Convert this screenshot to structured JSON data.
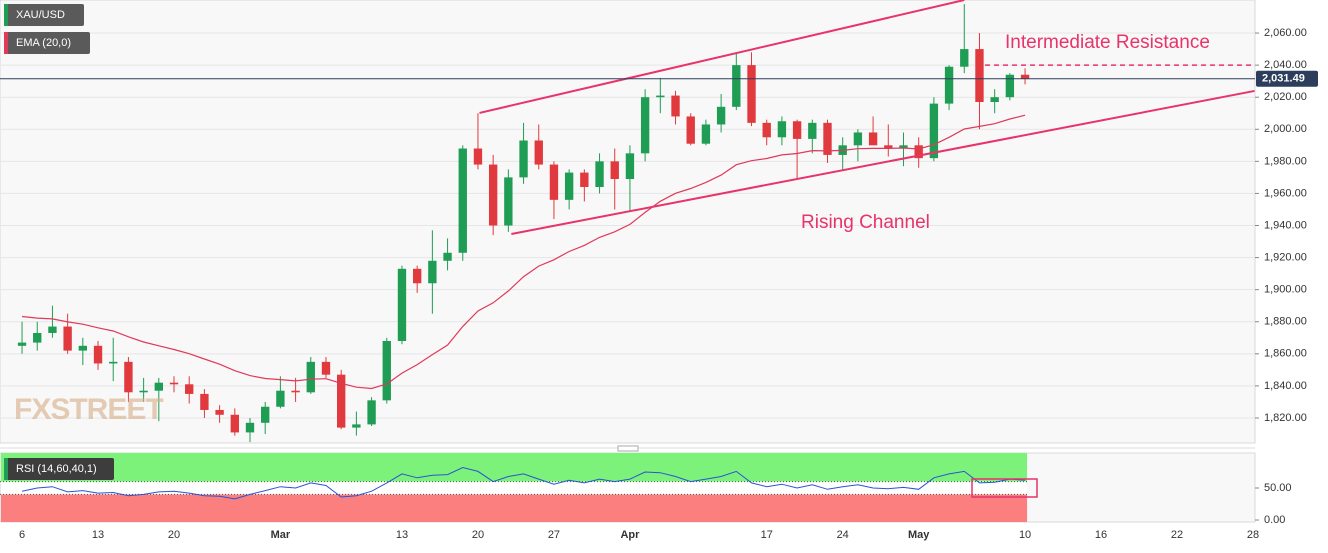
{
  "chart_data": [
    {
      "type": "candlestick",
      "x": [
        0,
        1,
        2,
        3,
        4,
        5,
        6,
        7,
        8,
        9,
        10,
        11,
        12,
        13,
        14,
        15,
        16,
        17,
        18,
        19,
        20,
        21,
        22,
        23,
        24,
        25,
        26,
        27,
        28,
        29,
        30,
        31,
        32,
        33,
        34,
        35,
        36,
        37,
        38,
        39,
        40,
        41,
        42,
        43,
        44,
        45,
        46,
        47,
        48,
        49,
        50,
        51,
        52,
        53,
        54,
        55,
        56,
        57,
        58,
        59,
        60,
        61,
        62,
        63,
        64,
        65,
        66
      ],
      "xlim": [
        -1.45,
        81.13
      ],
      "xticks": [
        {
          "value": 0,
          "label": "6"
        },
        {
          "value": 5,
          "label": "13"
        },
        {
          "value": 10,
          "label": "20"
        },
        {
          "value": 17,
          "label": "Mar"
        },
        {
          "value": 25,
          "label": "13"
        },
        {
          "value": 30,
          "label": "20"
        },
        {
          "value": 35,
          "label": "27"
        },
        {
          "value": 40,
          "label": "Apr"
        },
        {
          "value": 49,
          "label": "17"
        },
        {
          "value": 54,
          "label": "24"
        },
        {
          "value": 59,
          "label": "May"
        },
        {
          "value": 66,
          "label": "10"
        },
        {
          "value": 71,
          "label": "16"
        },
        {
          "value": 76,
          "label": "22"
        },
        {
          "value": 81,
          "label": "28"
        }
      ],
      "ylim": [
        1804.4,
        2080.6
      ],
      "yticks": [
        {
          "value": 1820,
          "label": "1,820.00"
        },
        {
          "value": 1840,
          "label": "1,840.00"
        },
        {
          "value": 1860,
          "label": "1,860.00"
        },
        {
          "value": 1880,
          "label": "1,880.00"
        },
        {
          "value": 1900,
          "label": "1,900.00"
        },
        {
          "value": 1920,
          "label": "1,920.00"
        },
        {
          "value": 1940,
          "label": "1,940.00"
        },
        {
          "value": 1960,
          "label": "1,960.00"
        },
        {
          "value": 1980,
          "label": "1,980.00"
        },
        {
          "value": 2000,
          "label": "2,000.00"
        },
        {
          "value": 2020,
          "label": "2,020.00"
        },
        {
          "value": 2040,
          "label": "2,040.00"
        },
        {
          "value": 2060,
          "label": "2,060.00"
        }
      ],
      "grid": true,
      "series": [
        {
          "name": "XAU/USD",
          "up_color": "#1f9d55",
          "down_color": "#e0393e",
          "open": [
            1865,
            1867,
            1873,
            1877,
            1862,
            1865,
            1854,
            1855,
            1836,
            1837,
            1842,
            1841,
            1835,
            1825,
            1822,
            1811,
            1817,
            1827,
            1837,
            1836,
            1855,
            1847,
            1814,
            1816,
            1831,
            1868,
            1913,
            1904,
            1918,
            1923,
            1988,
            1978,
            1940,
            1970,
            1993,
            1978,
            1956,
            1973,
            1964,
            1980,
            1969,
            1985,
            2020,
            2021,
            2008,
            1991,
            2003,
            2014,
            2040,
            2004,
            1995,
            2005,
            1994,
            2004,
            1984,
            1990,
            1998,
            1990,
            1988,
            1990,
            1982,
            2016,
            2039,
            2050,
            2017,
            2020,
            2034
          ],
          "high": [
            1880,
            1880,
            1890,
            1885,
            1870,
            1868,
            1870,
            1858,
            1845,
            1845,
            1846,
            1846,
            1838,
            1828,
            1826,
            1820,
            1830,
            1846,
            1845,
            1858,
            1858,
            1850,
            1824,
            1833,
            1870,
            1915,
            1915,
            1937,
            1932,
            1990,
            2010,
            1984,
            1975,
            2004,
            2003,
            1980,
            1975,
            1975,
            1985,
            1988,
            1990,
            2025,
            2032,
            2024,
            2010,
            2006,
            2022,
            2048,
            2048,
            2006,
            2008,
            2006,
            2006,
            2006,
            1995,
            2000,
            2008,
            2003,
            1998,
            1995,
            2020,
            2040,
            2078,
            2060,
            2025,
            2035,
            2038
          ],
          "low": [
            1860,
            1862,
            1870,
            1860,
            1853,
            1850,
            1843,
            1830,
            1830,
            1818,
            1836,
            1829,
            1820,
            1817,
            1809,
            1805,
            1810,
            1826,
            1830,
            1835,
            1845,
            1813,
            1809,
            1815,
            1829,
            1866,
            1898,
            1885,
            1912,
            1918,
            1975,
            1934,
            1936,
            1966,
            1975,
            1944,
            1950,
            1955,
            1960,
            1950,
            1949,
            1980,
            2010,
            2003,
            1990,
            1990,
            1998,
            2012,
            2002,
            1990,
            1990,
            1969,
            1985,
            1979,
            1975,
            1980,
            1992,
            1983,
            1977,
            1976,
            1980,
            2012,
            2035,
            2000,
            2010,
            2018,
            2028
          ],
          "close": [
            1867,
            1873,
            1877,
            1862,
            1865,
            1854,
            1855,
            1836,
            1837,
            1842,
            1841,
            1835,
            1825,
            1822,
            1811,
            1817,
            1827,
            1837,
            1836,
            1855,
            1847,
            1814,
            1816,
            1831,
            1868,
            1913,
            1904,
            1918,
            1923,
            1988,
            1978,
            1940,
            1970,
            1993,
            1978,
            1956,
            1973,
            1964,
            1980,
            1969,
            1985,
            2020,
            2021,
            2008,
            1991,
            2003,
            2014,
            2040,
            2004,
            1995,
            2005,
            1994,
            2004,
            1984,
            1990,
            1998,
            1990,
            1988,
            1990,
            1982,
            2016,
            2039,
            2050,
            2017,
            2020,
            2034,
            2031.49
          ]
        },
        {
          "name": "EMA (20,0)",
          "type": "line",
          "color": "#e0395a",
          "values": [
            1883.3,
            1882.3,
            1881.8,
            1879.9,
            1878.5,
            1876.2,
            1874.2,
            1870.6,
            1867.4,
            1865.0,
            1862.7,
            1860.1,
            1856.8,
            1853.5,
            1849.5,
            1846.4,
            1844.6,
            1843.9,
            1843.1,
            1844.2,
            1844.5,
            1841.6,
            1839.2,
            1838.4,
            1841.2,
            1848.0,
            1853.3,
            1859.5,
            1865.5,
            1877.1,
            1886.7,
            1891.8,
            1899.2,
            1908.1,
            1914.7,
            1918.6,
            1923.8,
            1927.6,
            1932.6,
            1936.1,
            1940.7,
            1948.2,
            1955.1,
            1960.1,
            1963.1,
            1966.9,
            1971.4,
            1977.9,
            1980.4,
            1981.8,
            1984.0,
            1984.9,
            1986.7,
            1986.5,
            1986.8,
            1987.9,
            1988.1,
            1988.1,
            1988.3,
            1987.7,
            1990.4,
            1995.0,
            2000.2,
            2001.8,
            2003.5,
            2006.4,
            2008.8
          ]
        }
      ],
      "last_price": {
        "value": 2031.49,
        "label": "2,031.49"
      },
      "resistance": {
        "label": "Intermediate Resistance",
        "level": 2040
      },
      "channel": {
        "label": "Rising Channel",
        "upper": {
          "x": [
            30.1,
            62.0
          ],
          "y": [
            2010.2,
            2080.6
          ]
        },
        "lower": {
          "x": [
            32.2,
            81.1
          ],
          "y": [
            1934.7,
            2023.9
          ]
        }
      },
      "watermark": "FXSTREET"
    },
    {
      "type": "line",
      "name": "RSI (14,60,40,1)",
      "color": "#2a52d6",
      "values": [
        45,
        50,
        52,
        44,
        46,
        42,
        43,
        38,
        40,
        44,
        45,
        42,
        38,
        37,
        33,
        40,
        46,
        52,
        50,
        58,
        54,
        36,
        38,
        45,
        58,
        72,
        66,
        70,
        71,
        82,
        76,
        60,
        68,
        72,
        64,
        56,
        62,
        58,
        64,
        60,
        64,
        75,
        74,
        68,
        60,
        64,
        68,
        76,
        58,
        52,
        56,
        50,
        55,
        48,
        52,
        55,
        50,
        49,
        51,
        48,
        66,
        72,
        76,
        58,
        59,
        64,
        62
      ],
      "upper": 60,
      "lower": 40,
      "ylim": [
        -3.1,
        104.7
      ],
      "yticks": [
        {
          "value": 0,
          "label": "0.00"
        },
        {
          "value": 50,
          "label": "50.00"
        }
      ]
    }
  ]
}
